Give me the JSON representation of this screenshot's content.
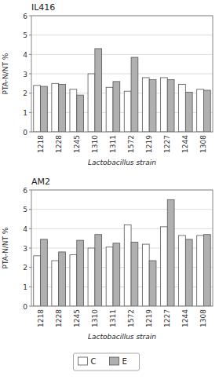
{
  "chart_data": [
    {
      "type": "bar",
      "title": "IL416",
      "categories": [
        "1218",
        "1228",
        "1245",
        "1310",
        "1311",
        "1572",
        "1219",
        "1227",
        "1244",
        "1308"
      ],
      "series": [
        {
          "name": "C",
          "color": "#ffffff",
          "values": [
            2.4,
            2.5,
            2.2,
            3.0,
            2.3,
            2.1,
            2.8,
            2.8,
            2.45,
            2.2
          ]
        },
        {
          "name": "E",
          "color": "#b0b0b0",
          "values": [
            2.35,
            2.45,
            1.9,
            4.3,
            2.6,
            3.85,
            2.7,
            2.7,
            2.05,
            2.15
          ]
        }
      ],
      "xlabel": "Lactobacillus strain",
      "ylabel": "PTA-N/NT %",
      "ylim": [
        0,
        6
      ],
      "yticks": [
        0,
        1,
        2,
        3,
        4,
        5,
        6
      ],
      "grid": true
    },
    {
      "type": "bar",
      "title": "AM2",
      "categories": [
        "1218",
        "1228",
        "1245",
        "1310",
        "1311",
        "1572",
        "1219",
        "1227",
        "1244",
        "1308"
      ],
      "series": [
        {
          "name": "C",
          "color": "#ffffff",
          "values": [
            2.6,
            2.35,
            2.65,
            3.0,
            3.05,
            4.2,
            3.2,
            4.1,
            3.65,
            3.65
          ]
        },
        {
          "name": "E",
          "color": "#b0b0b0",
          "values": [
            3.45,
            2.8,
            3.4,
            3.7,
            3.25,
            3.3,
            2.35,
            5.5,
            3.45,
            3.7
          ]
        }
      ],
      "xlabel": "Lactobacillus strain",
      "ylabel": "PTA-N/NT %",
      "ylim": [
        0,
        6
      ],
      "yticks": [
        0,
        1,
        2,
        3,
        4,
        5,
        6
      ],
      "grid": true,
      "legend": "bottom"
    }
  ]
}
